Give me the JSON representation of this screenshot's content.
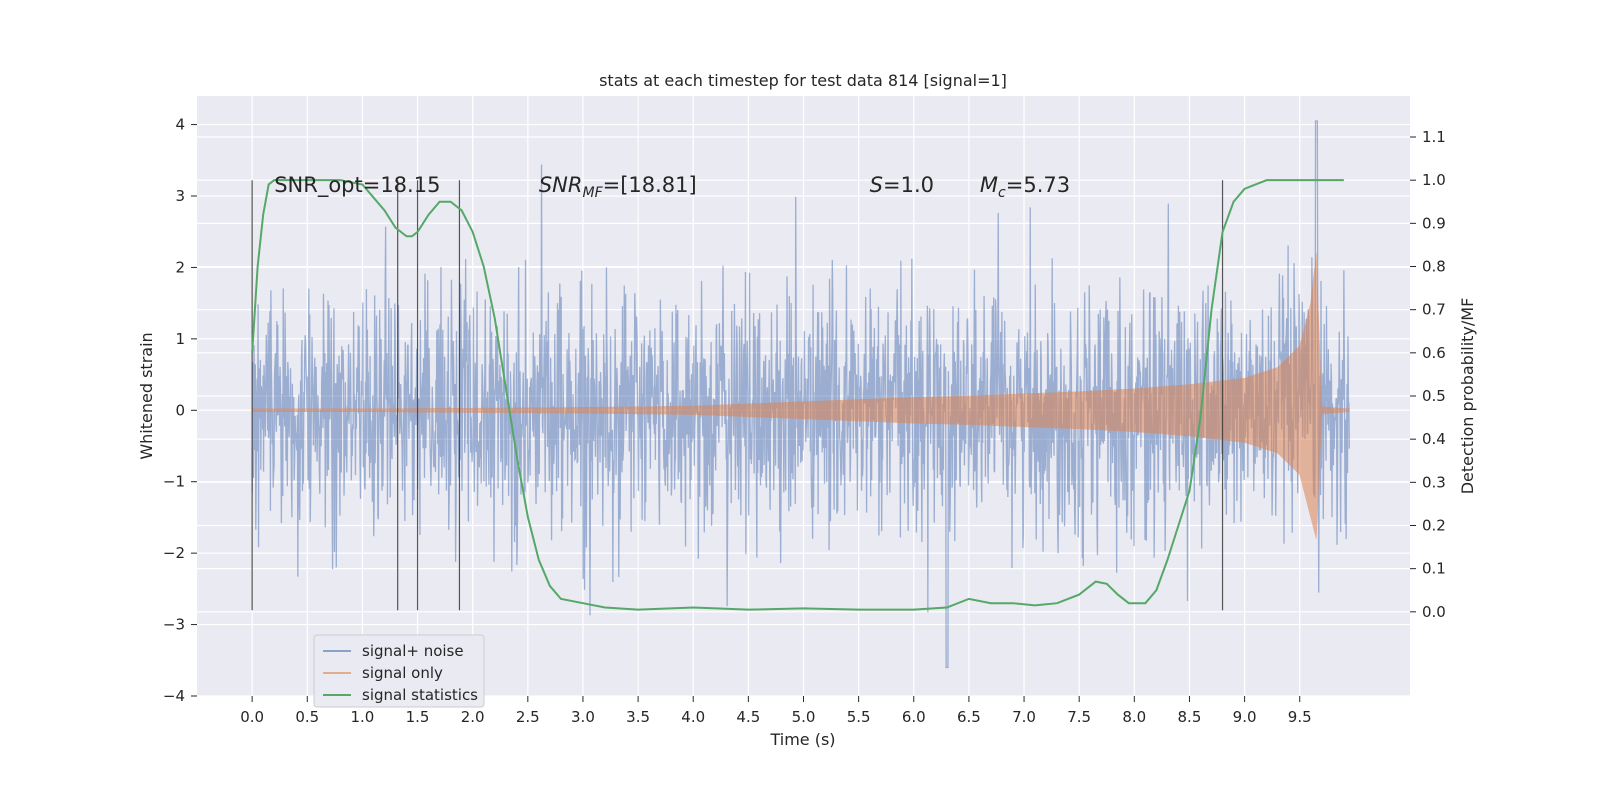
{
  "chart_data": {
    "type": "line",
    "title": "stats at each timestep for test data 814 [signal=1]",
    "xlabel": "Time (s)",
    "ylabel_left": "Whitened strain",
    "ylabel_right": "Detection probability/MF",
    "xlim": [
      -0.5,
      10.5
    ],
    "ylim_left": [
      -4,
      4.4
    ],
    "ylim_right": [
      -0.195,
      1.195
    ],
    "x_ticks": [
      0.0,
      0.5,
      1.0,
      1.5,
      2.0,
      2.5,
      3.0,
      3.5,
      4.0,
      4.5,
      5.0,
      5.5,
      6.0,
      6.5,
      7.0,
      7.5,
      8.0,
      8.5,
      9.0,
      9.5
    ],
    "x_tick_labels": [
      "0.0",
      "0.5",
      "1.0",
      "1.5",
      "2.0",
      "2.5",
      "3.0",
      "3.5",
      "4.0",
      "4.5",
      "5.0",
      "5.5",
      "6.0",
      "6.5",
      "7.0",
      "7.5",
      "8.0",
      "8.5",
      "9.0",
      "9.5"
    ],
    "y_left_ticks": [
      -4,
      -3,
      -2,
      -1,
      0,
      1,
      2,
      3,
      4
    ],
    "y_left_tick_labels": [
      "−4",
      "−3",
      "−2",
      "−1",
      "0",
      "1",
      "2",
      "3",
      "4"
    ],
    "y_right_ticks": [
      0.0,
      0.1,
      0.2,
      0.3,
      0.4,
      0.5,
      0.6,
      0.7,
      0.8,
      0.9,
      1.0,
      1.1
    ],
    "y_right_tick_labels": [
      "0.0",
      "0.1",
      "0.2",
      "0.3",
      "0.4",
      "0.5",
      "0.6",
      "0.7",
      "0.8",
      "0.9",
      "1.0",
      "1.1"
    ],
    "grid": true,
    "legend_position": "lower-left",
    "series": [
      {
        "name": "signal+ noise",
        "color": "#4c72b0",
        "axis": "left",
        "kind": "noise-band",
        "x_range": [
          0.0,
          9.95
        ],
        "typical_amplitude": 1.4,
        "peak_positive": 4.05,
        "peak_negative": -3.6
      },
      {
        "name": "signal only",
        "color": "#dd8452",
        "axis": "left",
        "kind": "envelope",
        "x": [
          0.0,
          1.0,
          2.0,
          3.0,
          4.0,
          4.5,
          5.0,
          5.5,
          6.0,
          6.5,
          7.0,
          7.5,
          8.0,
          8.5,
          9.0,
          9.3,
          9.5,
          9.6,
          9.65,
          9.7,
          9.95
        ],
        "y_upper": [
          0.02,
          0.02,
          0.03,
          0.04,
          0.06,
          0.09,
          0.12,
          0.15,
          0.18,
          0.2,
          0.23,
          0.26,
          0.3,
          0.36,
          0.45,
          0.6,
          0.9,
          1.5,
          2.2,
          0.05,
          0.02
        ],
        "y_lower": [
          -0.02,
          -0.02,
          -0.03,
          -0.04,
          -0.06,
          -0.09,
          -0.12,
          -0.15,
          -0.18,
          -0.2,
          -0.23,
          -0.26,
          -0.3,
          -0.36,
          -0.45,
          -0.6,
          -0.9,
          -1.5,
          -1.8,
          -0.05,
          -0.02
        ]
      },
      {
        "name": "signal statistics",
        "color": "#55a868",
        "axis": "right",
        "kind": "line",
        "x": [
          0.0,
          0.05,
          0.1,
          0.15,
          0.2,
          0.3,
          0.5,
          0.8,
          1.0,
          1.1,
          1.2,
          1.3,
          1.4,
          1.45,
          1.5,
          1.6,
          1.7,
          1.8,
          1.9,
          2.0,
          2.1,
          2.2,
          2.3,
          2.4,
          2.5,
          2.6,
          2.7,
          2.8,
          3.0,
          3.2,
          3.5,
          4.0,
          4.5,
          5.0,
          5.5,
          6.0,
          6.3,
          6.5,
          6.7,
          6.9,
          7.1,
          7.3,
          7.5,
          7.65,
          7.75,
          7.85,
          7.95,
          8.1,
          8.2,
          8.3,
          8.4,
          8.5,
          8.6,
          8.7,
          8.8,
          8.9,
          9.0,
          9.1,
          9.2,
          9.3,
          9.5,
          9.7,
          9.9
        ],
        "y": [
          0.6,
          0.8,
          0.92,
          0.99,
          1.0,
          1.0,
          1.0,
          1.0,
          0.99,
          0.96,
          0.93,
          0.89,
          0.87,
          0.87,
          0.88,
          0.92,
          0.95,
          0.95,
          0.93,
          0.88,
          0.8,
          0.68,
          0.52,
          0.36,
          0.22,
          0.12,
          0.06,
          0.03,
          0.02,
          0.01,
          0.005,
          0.01,
          0.005,
          0.008,
          0.005,
          0.005,
          0.01,
          0.03,
          0.02,
          0.02,
          0.015,
          0.02,
          0.04,
          0.07,
          0.065,
          0.04,
          0.02,
          0.02,
          0.05,
          0.12,
          0.2,
          0.28,
          0.45,
          0.7,
          0.88,
          0.95,
          0.98,
          0.99,
          1.0,
          1.0,
          1.0,
          1.0,
          1.0
        ]
      }
    ],
    "vertical_lines": [
      0.0,
      1.32,
      1.5,
      1.88,
      8.8
    ],
    "annotations": [
      {
        "id": "snr-opt",
        "text": "SNR_opt=18.15",
        "x": 0.2,
        "y": 3.1
      },
      {
        "id": "snr-mf",
        "label": "SNR",
        "sub": "MF",
        "suffix": "=[18.81]",
        "x": 2.6,
        "y": 3.1
      },
      {
        "id": "s-val",
        "label": "S",
        "suffix": "=1.0",
        "x": 5.6,
        "y": 3.1
      },
      {
        "id": "mc-val",
        "label": "M",
        "sub": "c",
        "suffix": "=5.73",
        "x": 6.6,
        "y": 3.1
      }
    ]
  }
}
